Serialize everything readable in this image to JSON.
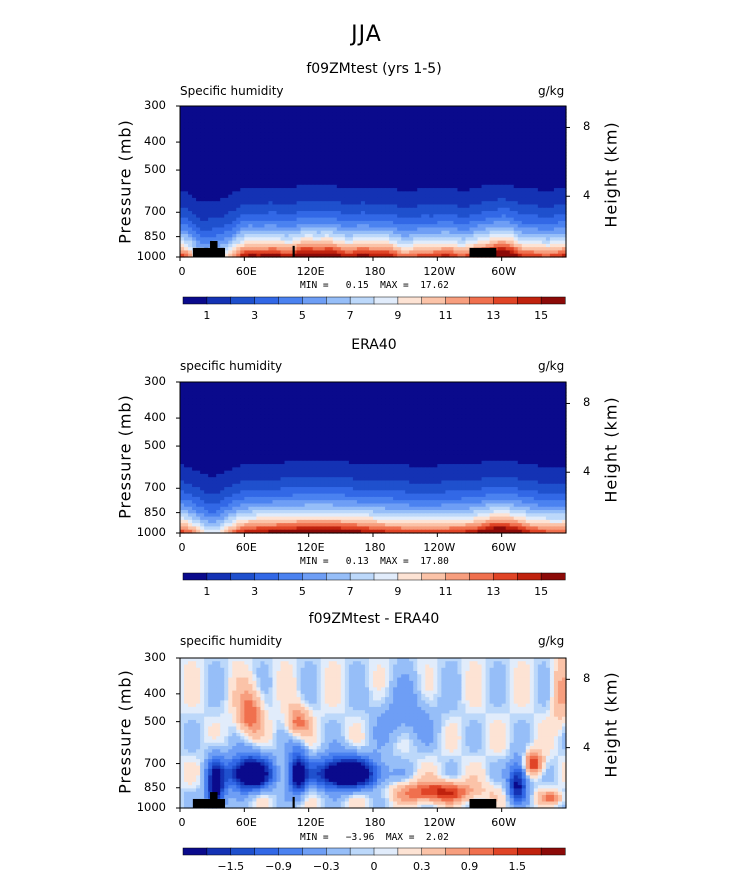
{
  "figure_title": "JJA",
  "colors": {
    "scale": [
      "#0a0a8c",
      "#1432b4",
      "#1f50cd",
      "#3268e6",
      "#4b82f0",
      "#6e9ef5",
      "#96bef8",
      "#bcd8fa",
      "#e1ecfb",
      "#fde3d4",
      "#fbc3a8",
      "#f79e7e",
      "#f0704e",
      "#e04426",
      "#c0220e",
      "#8c0a08"
    ],
    "land": "#000000"
  },
  "colorbars": [
    {
      "labels": [
        "1",
        "3",
        "5",
        "7",
        "9",
        "11",
        "13",
        "15"
      ]
    },
    {
      "labels": [
        "1",
        "3",
        "5",
        "7",
        "9",
        "11",
        "13",
        "15"
      ]
    },
    {
      "labels": [
        "−1.5",
        "−0.9",
        "−0.3",
        "0",
        "0.3",
        "0.9",
        "1.5"
      ]
    }
  ],
  "chart_data": [
    {
      "type": "heatmap",
      "title": "f09ZMtest (yrs 1-5)",
      "variable": "Specific humidity",
      "units": "g/kg",
      "ylabel": "Pressure (mb)",
      "y2label": "Height (km)",
      "x_ticks": [
        "0",
        "60E",
        "120E",
        "180",
        "120W",
        "60W"
      ],
      "y_ticks": [
        "300",
        "400",
        "500",
        "700",
        "850",
        "1000"
      ],
      "y2_ticks": [
        "8",
        "4"
      ],
      "min_label": "MIN =",
      "max_label": "MAX =",
      "min": "0.15",
      "max": "17.62",
      "levels": [
        0,
        1,
        2,
        3,
        4,
        5,
        6,
        7,
        8,
        9,
        10,
        11,
        12,
        13,
        14,
        15,
        16
      ],
      "xlim": [
        0,
        360
      ],
      "ylim": [
        1000,
        300
      ]
    },
    {
      "type": "heatmap",
      "title": "ERA40",
      "variable": "specific humidity",
      "units": "g/kg",
      "ylabel": "Pressure (mb)",
      "y2label": "Height (km)",
      "x_ticks": [
        "0",
        "60E",
        "120E",
        "180",
        "120W",
        "60W"
      ],
      "y_ticks": [
        "300",
        "400",
        "500",
        "700",
        "850",
        "1000"
      ],
      "y2_ticks": [
        "8",
        "4"
      ],
      "min_label": "MIN =",
      "max_label": "MAX =",
      "min": "0.13",
      "max": "17.80",
      "levels": [
        0,
        1,
        2,
        3,
        4,
        5,
        6,
        7,
        8,
        9,
        10,
        11,
        12,
        13,
        14,
        15,
        16
      ],
      "xlim": [
        0,
        360
      ],
      "ylim": [
        1000,
        300
      ]
    },
    {
      "type": "heatmap",
      "title": "f09ZMtest - ERA40",
      "variable": "specific humidity",
      "units": "g/kg",
      "ylabel": "Pressure (mb)",
      "y2label": "Height (km)",
      "x_ticks": [
        "0",
        "60E",
        "120E",
        "180",
        "120W",
        "60W"
      ],
      "y_ticks": [
        "300",
        "400",
        "500",
        "700",
        "850",
        "1000"
      ],
      "y2_ticks": [
        "8",
        "4"
      ],
      "min_label": "MIN =",
      "max_label": "MAX =",
      "min": "−3.96",
      "max": "2.02",
      "levels": [
        -1.8,
        -1.5,
        -1.2,
        -0.9,
        -0.6,
        -0.3,
        -0.1,
        0,
        0.1,
        0.3,
        0.6,
        0.9,
        1.2,
        1.5,
        1.8
      ],
      "xlim": [
        0,
        360
      ],
      "ylim": [
        1000,
        300
      ]
    }
  ]
}
